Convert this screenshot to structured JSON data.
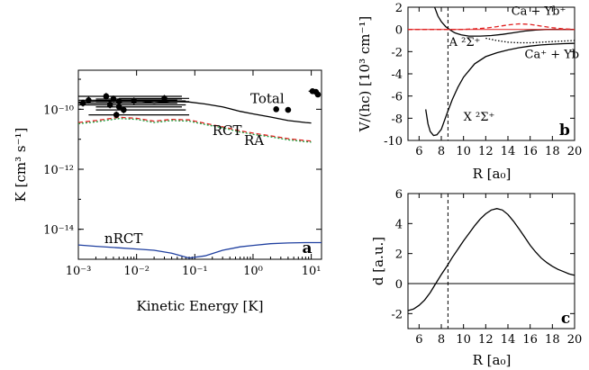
{
  "chart_data": [
    {
      "panel": "a",
      "type": "line",
      "xscale": "log",
      "yscale": "log",
      "xlabel": "Kinetic Energy [K]",
      "ylabel": "K [cm³ s⁻¹]",
      "xlim": [
        0.001,
        15
      ],
      "ylim": [
        1e-15,
        2e-09
      ],
      "xticks": [
        {
          "v": 0.001,
          "label": "10⁻³"
        },
        {
          "v": 0.01,
          "label": "10⁻²"
        },
        {
          "v": 0.1,
          "label": "10⁻¹"
        },
        {
          "v": 1,
          "label": "10⁰"
        },
        {
          "v": 10,
          "label": "10¹"
        }
      ],
      "yticks": [
        {
          "v": 1e-14,
          "label": "10⁻¹⁴"
        },
        {
          "v": 1e-12,
          "label": "10⁻¹²"
        },
        {
          "v": 1e-10,
          "label": "10⁻¹⁰"
        }
      ],
      "series": [
        {
          "name": "Total",
          "color": "#000000",
          "dash": "",
          "x": [
            0.001,
            0.002,
            0.005,
            0.01,
            0.02,
            0.04,
            0.08,
            0.15,
            0.3,
            0.6,
            1,
            2,
            4,
            8,
            10
          ],
          "y": [
            1.75e-10,
            1.85e-10,
            1.95e-10,
            1.9e-10,
            1.6e-10,
            1.8e-10,
            1.75e-10,
            1.5e-10,
            1.2e-10,
            8.5e-11,
            7e-11,
            5.5e-11,
            4.2e-11,
            3.6e-11,
            3.5e-11
          ]
        },
        {
          "name": "RCT",
          "color": "#e02020",
          "dash": "5,3",
          "x": [
            0.001,
            0.002,
            0.005,
            0.01,
            0.02,
            0.04,
            0.08,
            0.15,
            0.3,
            0.6,
            1,
            2,
            4,
            8,
            10
          ],
          "y": [
            3.6e-11,
            4.2e-11,
            5.4e-11,
            5e-11,
            4e-11,
            4.6e-11,
            4.4e-11,
            3.4e-11,
            2.6e-11,
            1.9e-11,
            1.6e-11,
            1.3e-11,
            1.05e-11,
            9e-12,
            8.7e-12
          ]
        },
        {
          "name": "RA",
          "color": "#20a040",
          "dash": "2,2",
          "x": [
            0.001,
            0.002,
            0.005,
            0.01,
            0.02,
            0.04,
            0.08,
            0.15,
            0.3,
            0.6,
            1,
            2,
            4,
            8,
            10
          ],
          "y": [
            3.3e-11,
            3.8e-11,
            4.9e-11,
            4.6e-11,
            3.6e-11,
            4.2e-11,
            4e-11,
            3.1e-11,
            2.4e-11,
            1.75e-11,
            1.45e-11,
            1.2e-11,
            9.6e-12,
            8.3e-12,
            8e-12
          ]
        },
        {
          "name": "nRCT",
          "color": "#2040a0",
          "dash": "",
          "x": [
            0.001,
            0.002,
            0.005,
            0.01,
            0.02,
            0.04,
            0.08,
            0.15,
            0.3,
            0.6,
            1,
            2,
            4,
            8,
            10,
            15
          ],
          "y": [
            3e-15,
            2.7e-15,
            2.4e-15,
            2.2e-15,
            2e-15,
            1.6e-15,
            1.1e-15,
            1.3e-15,
            2e-15,
            2.6e-15,
            2.9e-15,
            3.3e-15,
            3.5e-15,
            3.6e-15,
            3.6e-15,
            3.6e-15
          ]
        }
      ],
      "experiment": {
        "points": [
          {
            "x": 0.0012,
            "y": 1.6e-10,
            "xmin": 0.001,
            "xmax": 0.05,
            "yerr": 1.3
          },
          {
            "x": 0.0015,
            "y": 2e-10,
            "xmin": 0.001,
            "xmax": 0.05,
            "yerr": 1.3
          },
          {
            "x": 0.003,
            "y": 2.7e-10,
            "xmin": 0.001,
            "xmax": 0.06,
            "yerr": 1.3
          },
          {
            "x": 0.0035,
            "y": 1.4e-10,
            "xmin": 0.001,
            "xmax": 0.07,
            "yerr": 1.3
          },
          {
            "x": 0.004,
            "y": 2.2e-10,
            "xmin": 0.002,
            "xmax": 0.06,
            "yerr": 1.3
          },
          {
            "x": 0.005,
            "y": 1.8e-10,
            "xmin": 0.002,
            "xmax": 0.08,
            "yerr": 1.3
          },
          {
            "x": 0.005,
            "y": 1.2e-10,
            "xmin": 0.002,
            "xmax": 0.06,
            "yerr": 1.3
          },
          {
            "x": 0.0045,
            "y": 6.5e-11,
            "xmin": 0.0015,
            "xmax": 0.08,
            "yerr": 1.3
          },
          {
            "x": 0.006,
            "y": 9.5e-11,
            "xmin": 0.002,
            "xmax": 0.07,
            "yerr": 1.3
          },
          {
            "x": 0.009,
            "y": 1.9e-10,
            "xmin": 0.002,
            "xmax": 0.07,
            "yerr": 1.3
          },
          {
            "x": 0.03,
            "y": 2.3e-10,
            "xmin": 0.005,
            "xmax": 0.08,
            "yerr": 1.3
          },
          {
            "x": 2.5,
            "y": 1e-10,
            "xmin": 2.5,
            "xmax": 2.5,
            "yerr": 1.2
          },
          {
            "x": 4,
            "y": 9.5e-11,
            "xmin": 4,
            "xmax": 4,
            "yerr": 1.2
          },
          {
            "x": 10.5,
            "y": 4e-10,
            "xmin": 9,
            "xmax": 12,
            "yerr": 1.2
          },
          {
            "x": 12,
            "y": 3.8e-10,
            "xmin": 11,
            "xmax": 13,
            "yerr": 1.2
          },
          {
            "x": 13,
            "y": 3.1e-10,
            "xmin": 12,
            "xmax": 14,
            "yerr": 1.2
          }
        ]
      },
      "annotations": [
        {
          "text": "Total",
          "x": 0.9,
          "y": 1.6e-10
        },
        {
          "text": "RCT",
          "x": 0.2,
          "y": 1.4e-11
        },
        {
          "text": "RA",
          "x": 0.7,
          "y": 6.5e-12
        },
        {
          "text": "nRCT",
          "x": 0.0028,
          "y": 3.5e-15
        }
      ],
      "letter": "a"
    },
    {
      "panel": "b",
      "type": "line",
      "xlabel": "R [a₀]",
      "ylabel": "V/(hc) [10³ cm⁻¹]",
      "xlim": [
        5,
        20
      ],
      "ylim": [
        -10,
        2
      ],
      "xticks": [
        6,
        8,
        10,
        12,
        14,
        16,
        18,
        20
      ],
      "yticks": [
        -10,
        -8,
        -6,
        -4,
        -2,
        0,
        2
      ],
      "series": [
        {
          "name": "X ²Σ⁺",
          "color": "#000000",
          "dash": "",
          "x": [
            6.6,
            6.8,
            7,
            7.3,
            7.6,
            8,
            8.5,
            9,
            9.5,
            10,
            11,
            12,
            13,
            14,
            15,
            16,
            17,
            18,
            19,
            20
          ],
          "y": [
            -7.2,
            -8.5,
            -9.2,
            -9.55,
            -9.5,
            -9.0,
            -7.6,
            -6.3,
            -5.2,
            -4.3,
            -3.1,
            -2.45,
            -2.1,
            -1.85,
            -1.65,
            -1.5,
            -1.4,
            -1.33,
            -1.28,
            -1.25
          ]
        },
        {
          "name": "A ²Σ⁺",
          "color": "#000000",
          "dash": "",
          "x": [
            7.4,
            7.7,
            8,
            8.4,
            8.8,
            9.2,
            9.8,
            10.5,
            11.5,
            12.5,
            13.5,
            14.5,
            15.5,
            16.5,
            17.5,
            18.5,
            19.5,
            20
          ],
          "y": [
            2,
            1.2,
            0.7,
            0.25,
            -0.05,
            -0.3,
            -0.5,
            -0.6,
            -0.6,
            -0.55,
            -0.45,
            -0.3,
            -0.15,
            -0.05,
            0,
            0,
            0,
            0
          ]
        },
        {
          "name": "A dotted",
          "color": "#000000",
          "dash": "1.5,2",
          "x": [
            12,
            13,
            14,
            15,
            16,
            17,
            18,
            19,
            20
          ],
          "y": [
            -0.8,
            -1.0,
            -1.15,
            -1.2,
            -1.2,
            -1.15,
            -1.1,
            -1.05,
            -1.0
          ]
        },
        {
          "name": "Ca + Yb⁺",
          "color": "#e02020",
          "dash": "5,3",
          "x": [
            5,
            8,
            10,
            11,
            12,
            13,
            14,
            15,
            16,
            17,
            18,
            19,
            20
          ],
          "y": [
            0,
            0,
            0,
            0.05,
            0.12,
            0.25,
            0.4,
            0.5,
            0.45,
            0.3,
            0.15,
            0.05,
            0
          ]
        },
        {
          "name": "zero",
          "color": "#e02020",
          "dash": "",
          "x": [
            5,
            20
          ],
          "y": [
            0,
            0
          ]
        }
      ],
      "vline": 8.6,
      "annotations": [
        {
          "text": "Ca  + Yb⁺",
          "x": 14.3,
          "y": 1.3
        },
        {
          "text": "A ²Σ⁺",
          "x": 8.7,
          "y": -1.5
        },
        {
          "text": "Ca⁺ + Yb",
          "x": 15.5,
          "y": -2.6
        },
        {
          "text": "X ²Σ⁺",
          "x": 10.0,
          "y": -8.2
        }
      ],
      "letter": "b"
    },
    {
      "panel": "c",
      "type": "line",
      "xlabel": "R [a₀]",
      "ylabel": "d [a.u.]",
      "xlim": [
        5,
        20
      ],
      "ylim": [
        -3,
        6
      ],
      "xticks": [
        6,
        8,
        10,
        12,
        14,
        16,
        18,
        20
      ],
      "yticks": [
        -2,
        0,
        2,
        4,
        6
      ],
      "series": [
        {
          "name": "d",
          "color": "#000000",
          "dash": "",
          "x": [
            5,
            5.5,
            6,
            6.5,
            7,
            7.5,
            8,
            8.5,
            9,
            9.5,
            10,
            10.5,
            11,
            11.5,
            12,
            12.5,
            13,
            13.5,
            14,
            14.5,
            15,
            15.5,
            16,
            16.5,
            17,
            17.5,
            18,
            18.5,
            19,
            19.5,
            20
          ],
          "y": [
            -1.8,
            -1.7,
            -1.45,
            -1.1,
            -0.6,
            0,
            0.6,
            1.15,
            1.75,
            2.3,
            2.85,
            3.35,
            3.85,
            4.3,
            4.65,
            4.9,
            5.0,
            4.9,
            4.6,
            4.15,
            3.65,
            3.1,
            2.55,
            2.1,
            1.7,
            1.4,
            1.15,
            0.95,
            0.8,
            0.65,
            0.55
          ]
        },
        {
          "name": "zero",
          "color": "#000000",
          "dash": "",
          "x": [
            5,
            20
          ],
          "y": [
            0,
            0
          ]
        }
      ],
      "vline": 8.6,
      "letter": "c"
    }
  ]
}
